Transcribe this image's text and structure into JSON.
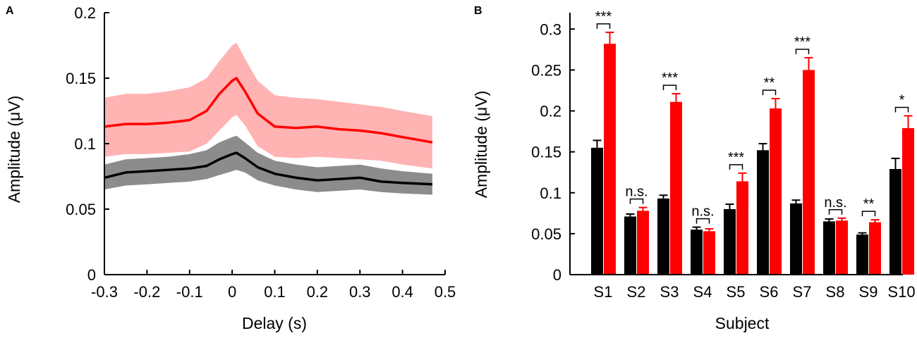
{
  "colors": {
    "red": "#ff0000",
    "red_band": "#ffb3b3",
    "black": "#000000",
    "grey_band": "#8c8c8c"
  },
  "panel_a": {
    "label": "A"
  },
  "panel_b": {
    "label": "B"
  },
  "chart_data": [
    {
      "type": "line",
      "panel": "A",
      "xlabel": "Delay (s)",
      "ylabel": "Amplitude (μV)",
      "xlim": [
        -0.3,
        0.5
      ],
      "ylim": [
        0,
        0.2
      ],
      "xticks": [
        "-0.3",
        "-0.2",
        "-0.1",
        "0",
        "0.1",
        "0.2",
        "0.3",
        "0.4",
        "0.5"
      ],
      "yticks": [
        "0",
        "0.05",
        "0.1",
        "0.15",
        "0.2"
      ],
      "x": [
        -0.3,
        -0.25,
        -0.2,
        -0.15,
        -0.1,
        -0.06,
        -0.03,
        0.0,
        0.01,
        0.03,
        0.06,
        0.1,
        0.15,
        0.2,
        0.25,
        0.3,
        0.35,
        0.4,
        0.47
      ],
      "series": [
        {
          "name": "red",
          "color": "#ff0000",
          "values": [
            0.113,
            0.115,
            0.115,
            0.116,
            0.118,
            0.125,
            0.138,
            0.148,
            0.15,
            0.14,
            0.123,
            0.113,
            0.112,
            0.113,
            0.111,
            0.11,
            0.108,
            0.105,
            0.101
          ],
          "upper": [
            0.135,
            0.138,
            0.138,
            0.14,
            0.143,
            0.15,
            0.163,
            0.175,
            0.177,
            0.165,
            0.148,
            0.137,
            0.135,
            0.134,
            0.132,
            0.13,
            0.128,
            0.125,
            0.121
          ],
          "lower": [
            0.09,
            0.092,
            0.092,
            0.093,
            0.094,
            0.1,
            0.11,
            0.12,
            0.122,
            0.114,
            0.098,
            0.09,
            0.089,
            0.09,
            0.089,
            0.088,
            0.087,
            0.084,
            0.081
          ]
        },
        {
          "name": "black",
          "color": "#000000",
          "values": [
            0.074,
            0.078,
            0.079,
            0.08,
            0.081,
            0.083,
            0.088,
            0.092,
            0.093,
            0.089,
            0.082,
            0.077,
            0.074,
            0.072,
            0.073,
            0.074,
            0.071,
            0.07,
            0.069
          ],
          "upper": [
            0.084,
            0.088,
            0.089,
            0.09,
            0.092,
            0.095,
            0.101,
            0.105,
            0.106,
            0.101,
            0.093,
            0.087,
            0.084,
            0.082,
            0.083,
            0.084,
            0.081,
            0.079,
            0.077
          ],
          "lower": [
            0.065,
            0.068,
            0.069,
            0.07,
            0.071,
            0.073,
            0.076,
            0.079,
            0.08,
            0.078,
            0.072,
            0.068,
            0.065,
            0.063,
            0.064,
            0.065,
            0.063,
            0.062,
            0.061
          ]
        }
      ]
    },
    {
      "type": "bar",
      "panel": "B",
      "xlabel": "Subject",
      "ylabel": "Amplitude (μV)",
      "ylim": [
        0,
        0.32
      ],
      "yticks": [
        "0",
        "0.05",
        "0.1",
        "0.15",
        "0.2",
        "0.25",
        "0.3"
      ],
      "categories": [
        "S1",
        "S2",
        "S3",
        "S4",
        "S5",
        "S6",
        "S7",
        "S8",
        "S9",
        "S10"
      ],
      "series": [
        {
          "name": "black",
          "color": "#000000",
          "values": [
            0.155,
            0.071,
            0.093,
            0.055,
            0.08,
            0.152,
            0.087,
            0.065,
            0.049,
            0.129
          ],
          "errors": [
            0.009,
            0.003,
            0.004,
            0.003,
            0.006,
            0.008,
            0.004,
            0.003,
            0.002,
            0.013
          ]
        },
        {
          "name": "red",
          "color": "#ff0000",
          "values": [
            0.282,
            0.078,
            0.211,
            0.053,
            0.114,
            0.203,
            0.25,
            0.066,
            0.064,
            0.179
          ],
          "errors": [
            0.014,
            0.004,
            0.01,
            0.003,
            0.01,
            0.012,
            0.015,
            0.003,
            0.003,
            0.015
          ]
        }
      ],
      "significance": [
        "***",
        "n.s.",
        "***",
        "n.s.",
        "***",
        "**",
        "***",
        "n.s.",
        "**",
        "*"
      ]
    }
  ]
}
